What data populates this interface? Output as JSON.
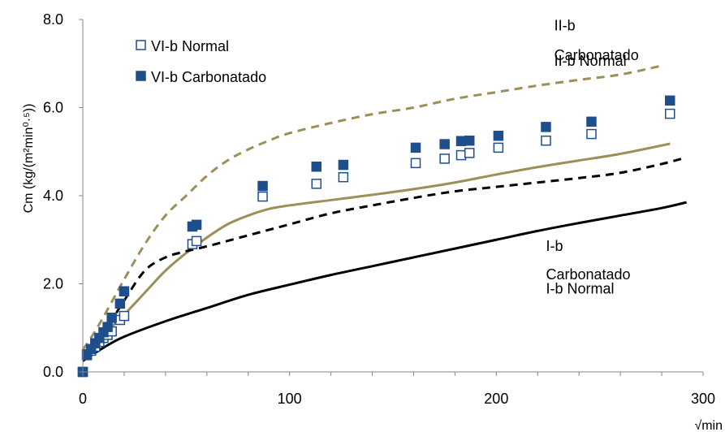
{
  "chart_data": {
    "type": "scatter",
    "xlabel": "√min",
    "ylabel": "Cm (kg/(m²min⁰·⁵))",
    "xlim": [
      0,
      300
    ],
    "ylim": [
      0,
      8
    ],
    "x_ticks": [
      "0",
      "100",
      "200",
      "300"
    ],
    "y_ticks": [
      "0.0",
      "2.0",
      "4.0",
      "6.0",
      "8.0"
    ],
    "grid": false,
    "legend_position": "top-left",
    "legend": [
      {
        "label": "VI-b Normal",
        "marker": "open-square",
        "color": "#1f4e8c"
      },
      {
        "label": "VI-b Carbonatado",
        "marker": "filled-square",
        "color": "#1f4e8c"
      }
    ],
    "series": [
      {
        "name": "VI-b Normal",
        "kind": "markers",
        "marker": "open-square",
        "color": "#1f4e8c",
        "points": [
          [
            0,
            0
          ],
          [
            2,
            0.38
          ],
          [
            4,
            0.48
          ],
          [
            6,
            0.57
          ],
          [
            8,
            0.68
          ],
          [
            10,
            0.77
          ],
          [
            12,
            0.84
          ],
          [
            14,
            0.92
          ],
          [
            18,
            1.18
          ],
          [
            20,
            1.27
          ],
          [
            53,
            2.9
          ],
          [
            55,
            2.97
          ],
          [
            87,
            3.98
          ],
          [
            113,
            4.27
          ],
          [
            126,
            4.42
          ],
          [
            161,
            4.74
          ],
          [
            175,
            4.84
          ],
          [
            183,
            4.92
          ],
          [
            187,
            4.97
          ],
          [
            201,
            5.09
          ],
          [
            224,
            5.25
          ],
          [
            246,
            5.4
          ],
          [
            284,
            5.86
          ]
        ]
      },
      {
        "name": "VI-b Carbonatado",
        "kind": "markers",
        "marker": "filled-square",
        "color": "#1f4e8c",
        "points": [
          [
            0,
            0
          ],
          [
            2,
            0.4
          ],
          [
            4,
            0.52
          ],
          [
            6,
            0.65
          ],
          [
            8,
            0.77
          ],
          [
            10,
            0.9
          ],
          [
            12,
            1.02
          ],
          [
            14,
            1.23
          ],
          [
            18,
            1.55
          ],
          [
            20,
            1.83
          ],
          [
            53,
            3.3
          ],
          [
            55,
            3.34
          ],
          [
            87,
            4.22
          ],
          [
            113,
            4.66
          ],
          [
            126,
            4.7
          ],
          [
            161,
            5.09
          ],
          [
            175,
            5.17
          ],
          [
            183,
            5.24
          ],
          [
            187,
            5.25
          ],
          [
            201,
            5.36
          ],
          [
            224,
            5.56
          ],
          [
            246,
            5.68
          ],
          [
            284,
            6.16
          ]
        ]
      },
      {
        "name": "II-b Carbonatado",
        "kind": "line",
        "style": "dashed",
        "color": "#9c8f5a",
        "points": [
          [
            0,
            0.5
          ],
          [
            5,
            0.85
          ],
          [
            10,
            1.25
          ],
          [
            20,
            2.1
          ],
          [
            30,
            2.9
          ],
          [
            40,
            3.55
          ],
          [
            50,
            4.0
          ],
          [
            60,
            4.45
          ],
          [
            70,
            4.8
          ],
          [
            80,
            5.05
          ],
          [
            90,
            5.25
          ],
          [
            100,
            5.42
          ],
          [
            120,
            5.65
          ],
          [
            140,
            5.85
          ],
          [
            160,
            6.0
          ],
          [
            180,
            6.2
          ],
          [
            200,
            6.35
          ],
          [
            220,
            6.5
          ],
          [
            240,
            6.63
          ],
          [
            260,
            6.75
          ],
          [
            280,
            6.95
          ]
        ]
      },
      {
        "name": "II-b Normal",
        "kind": "line",
        "style": "solid",
        "color": "#9c8f5a",
        "points": [
          [
            0,
            0.4
          ],
          [
            5,
            0.62
          ],
          [
            10,
            0.85
          ],
          [
            20,
            1.3
          ],
          [
            30,
            1.8
          ],
          [
            40,
            2.3
          ],
          [
            50,
            2.7
          ],
          [
            60,
            3.05
          ],
          [
            70,
            3.35
          ],
          [
            80,
            3.55
          ],
          [
            90,
            3.7
          ],
          [
            100,
            3.78
          ],
          [
            120,
            3.9
          ],
          [
            140,
            4.02
          ],
          [
            160,
            4.15
          ],
          [
            180,
            4.3
          ],
          [
            200,
            4.48
          ],
          [
            220,
            4.65
          ],
          [
            240,
            4.8
          ],
          [
            260,
            4.95
          ],
          [
            284,
            5.18
          ]
        ]
      },
      {
        "name": "I-b Carbonatado",
        "kind": "line",
        "style": "dashed",
        "color": "#000000",
        "points": [
          [
            0,
            0.35
          ],
          [
            5,
            0.6
          ],
          [
            10,
            0.9
          ],
          [
            15,
            1.25
          ],
          [
            20,
            1.62
          ],
          [
            30,
            2.3
          ],
          [
            40,
            2.6
          ],
          [
            50,
            2.74
          ],
          [
            60,
            2.85
          ],
          [
            80,
            3.1
          ],
          [
            100,
            3.35
          ],
          [
            120,
            3.6
          ],
          [
            140,
            3.78
          ],
          [
            160,
            3.95
          ],
          [
            180,
            4.1
          ],
          [
            200,
            4.2
          ],
          [
            220,
            4.3
          ],
          [
            240,
            4.4
          ],
          [
            260,
            4.52
          ],
          [
            280,
            4.72
          ],
          [
            292,
            4.87
          ]
        ]
      },
      {
        "name": "I-b Normal",
        "kind": "line",
        "style": "solid",
        "color": "#000000",
        "points": [
          [
            0,
            0.25
          ],
          [
            10,
            0.55
          ],
          [
            20,
            0.8
          ],
          [
            40,
            1.15
          ],
          [
            60,
            1.45
          ],
          [
            80,
            1.75
          ],
          [
            100,
            1.98
          ],
          [
            120,
            2.2
          ],
          [
            140,
            2.4
          ],
          [
            160,
            2.6
          ],
          [
            180,
            2.8
          ],
          [
            200,
            3.0
          ],
          [
            220,
            3.2
          ],
          [
            240,
            3.38
          ],
          [
            260,
            3.55
          ],
          [
            280,
            3.72
          ],
          [
            292,
            3.85
          ]
        ]
      }
    ],
    "curve_labels": [
      {
        "text": "II-b",
        "x": 228,
        "y": 7.75
      },
      {
        "text": "Carbonatado",
        "x": 228,
        "y": 7.08
      },
      {
        "text": "II-b Normal",
        "x": 228,
        "y": 6.95
      },
      {
        "text": "I-b",
        "x": 224,
        "y": 2.75
      },
      {
        "text": "Carbonatado",
        "x": 224,
        "y": 2.1
      },
      {
        "text": "I-b Normal",
        "x": 224,
        "y": 1.78
      }
    ]
  }
}
